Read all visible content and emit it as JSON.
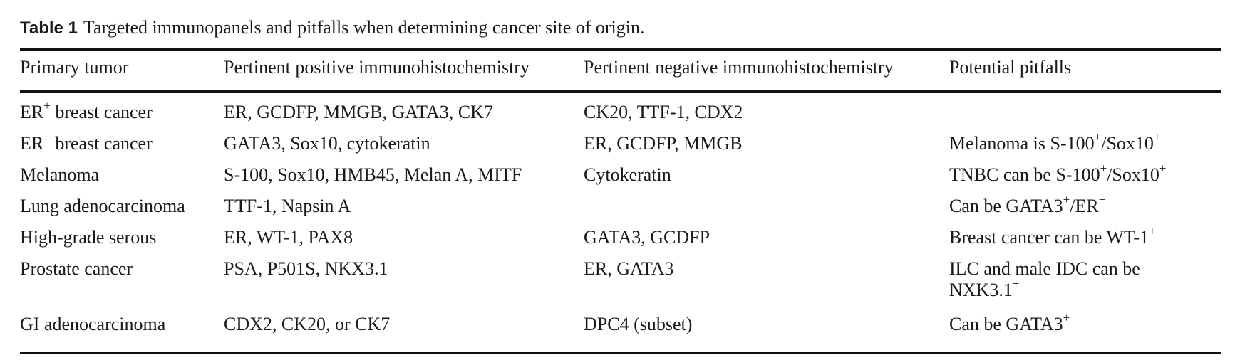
{
  "caption": {
    "label": "Table 1",
    "text": "Targeted immunopanels and pitfalls when determining cancer site of origin."
  },
  "table": {
    "headers": [
      "Primary tumor",
      "Pertinent positive immunohistochemistry",
      "Pertinent negative immunohistochemistry",
      "Potential pitfalls"
    ],
    "rows": [
      {
        "tumor": [
          "ER",
          "+",
          " breast cancer"
        ],
        "positive": "ER, GCDFP, MMGB, GATA3, CK7",
        "negative": "CK20, TTF-1, CDX2",
        "pitfalls": []
      },
      {
        "tumor": [
          "ER",
          "−",
          " breast cancer"
        ],
        "positive": "GATA3, Sox10, cytokeratin",
        "negative": "ER, GCDFP, MMGB",
        "pitfalls": [
          "Melanoma is S-100",
          "+",
          "/Sox10",
          "+"
        ]
      },
      {
        "tumor": [
          "Melanoma"
        ],
        "positive": "S-100, Sox10, HMB45, Melan A, MITF",
        "negative": "Cytokeratin",
        "pitfalls": [
          "TNBC can be S-100",
          "+",
          "/Sox10",
          "+"
        ]
      },
      {
        "tumor": [
          "Lung adenocarcinoma"
        ],
        "positive": "TTF-1, Napsin A",
        "negative": "",
        "pitfalls": [
          "Can be GATA3",
          "+",
          "/ER",
          "+"
        ]
      },
      {
        "tumor": [
          "High-grade serous"
        ],
        "positive": "ER, WT-1, PAX8",
        "negative": "GATA3, GCDFP",
        "pitfalls": [
          "Breast cancer can be WT-1",
          "+"
        ]
      },
      {
        "tumor": [
          "Prostate cancer"
        ],
        "positive": "PSA, P501S, NKX3.1",
        "negative": "ER, GATA3",
        "pitfalls": [
          "ILC and male IDC can be",
          "NXK3.1",
          "+"
        ]
      },
      {
        "tumor": [
          "GI adenocarcinoma"
        ],
        "positive": "CDX2, CK20, or CK7",
        "negative": "DPC4 (subset)",
        "pitfalls": [
          "Can be GATA3",
          "+"
        ]
      }
    ]
  }
}
